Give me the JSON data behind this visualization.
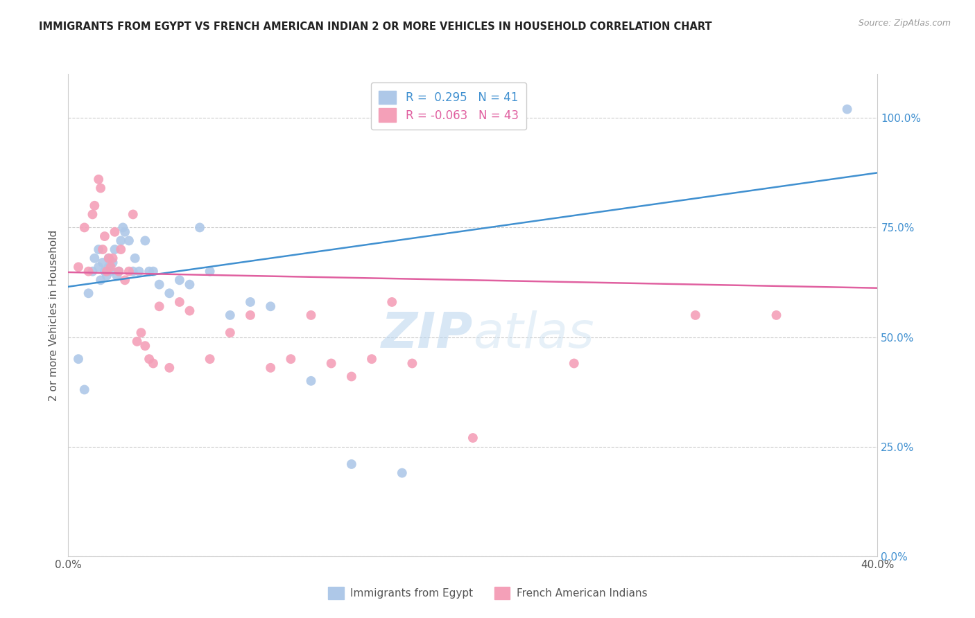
{
  "title": "IMMIGRANTS FROM EGYPT VS FRENCH AMERICAN INDIAN 2 OR MORE VEHICLES IN HOUSEHOLD CORRELATION CHART",
  "source": "Source: ZipAtlas.com",
  "ylabel_left": "2 or more Vehicles in Household",
  "x_min": 0.0,
  "x_max": 0.4,
  "y_min": 0.0,
  "y_max": 1.1,
  "x_tick_positions": [
    0.0,
    0.05,
    0.1,
    0.15,
    0.2,
    0.25,
    0.3,
    0.35,
    0.4
  ],
  "x_tick_labels": [
    "0.0%",
    "",
    "",
    "",
    "",
    "",
    "",
    "",
    "40.0%"
  ],
  "y_ticks_right": [
    0.0,
    0.25,
    0.5,
    0.75,
    1.0
  ],
  "y_tick_labels_right": [
    "0.0%",
    "25.0%",
    "50.0%",
    "75.0%",
    "100.0%"
  ],
  "legend_r1": "R =  0.295",
  "legend_n1": "N = 41",
  "legend_r2": "R = -0.063",
  "legend_n2": "N = 43",
  "blue_color": "#aec8e8",
  "pink_color": "#f4a0b8",
  "blue_line_color": "#4090d0",
  "pink_line_color": "#e060a0",
  "watermark_color": "#d0e4f4",
  "grid_color": "#cccccc",
  "background_color": "#ffffff",
  "blue_scatter_x": [
    0.005,
    0.008,
    0.01,
    0.012,
    0.013,
    0.015,
    0.015,
    0.016,
    0.017,
    0.018,
    0.019,
    0.02,
    0.02,
    0.021,
    0.022,
    0.023,
    0.024,
    0.025,
    0.026,
    0.027,
    0.028,
    0.03,
    0.032,
    0.033,
    0.035,
    0.038,
    0.04,
    0.042,
    0.045,
    0.05,
    0.055,
    0.06,
    0.065,
    0.07,
    0.08,
    0.09,
    0.1,
    0.12,
    0.14,
    0.165,
    0.385
  ],
  "blue_scatter_y": [
    0.45,
    0.38,
    0.6,
    0.65,
    0.68,
    0.66,
    0.7,
    0.63,
    0.67,
    0.65,
    0.64,
    0.66,
    0.68,
    0.65,
    0.67,
    0.7,
    0.64,
    0.65,
    0.72,
    0.75,
    0.74,
    0.72,
    0.65,
    0.68,
    0.65,
    0.72,
    0.65,
    0.65,
    0.62,
    0.6,
    0.63,
    0.62,
    0.75,
    0.65,
    0.55,
    0.58,
    0.57,
    0.4,
    0.21,
    0.19,
    1.02
  ],
  "pink_scatter_x": [
    0.005,
    0.008,
    0.01,
    0.012,
    0.013,
    0.015,
    0.016,
    0.017,
    0.018,
    0.019,
    0.02,
    0.021,
    0.022,
    0.023,
    0.025,
    0.026,
    0.028,
    0.03,
    0.032,
    0.034,
    0.036,
    0.038,
    0.04,
    0.042,
    0.045,
    0.05,
    0.055,
    0.06,
    0.07,
    0.08,
    0.09,
    0.1,
    0.11,
    0.12,
    0.13,
    0.14,
    0.15,
    0.16,
    0.17,
    0.2,
    0.25,
    0.31,
    0.35
  ],
  "pink_scatter_y": [
    0.66,
    0.75,
    0.65,
    0.78,
    0.8,
    0.86,
    0.84,
    0.7,
    0.73,
    0.65,
    0.68,
    0.66,
    0.68,
    0.74,
    0.65,
    0.7,
    0.63,
    0.65,
    0.78,
    0.49,
    0.51,
    0.48,
    0.45,
    0.44,
    0.57,
    0.43,
    0.58,
    0.56,
    0.45,
    0.51,
    0.55,
    0.43,
    0.45,
    0.55,
    0.44,
    0.41,
    0.45,
    0.58,
    0.44,
    0.27,
    0.44,
    0.55,
    0.55
  ],
  "blue_trendline": [
    [
      0.0,
      0.4
    ],
    [
      0.615,
      0.875
    ]
  ],
  "pink_trendline": [
    [
      0.0,
      0.4
    ],
    [
      0.648,
      0.612
    ]
  ]
}
